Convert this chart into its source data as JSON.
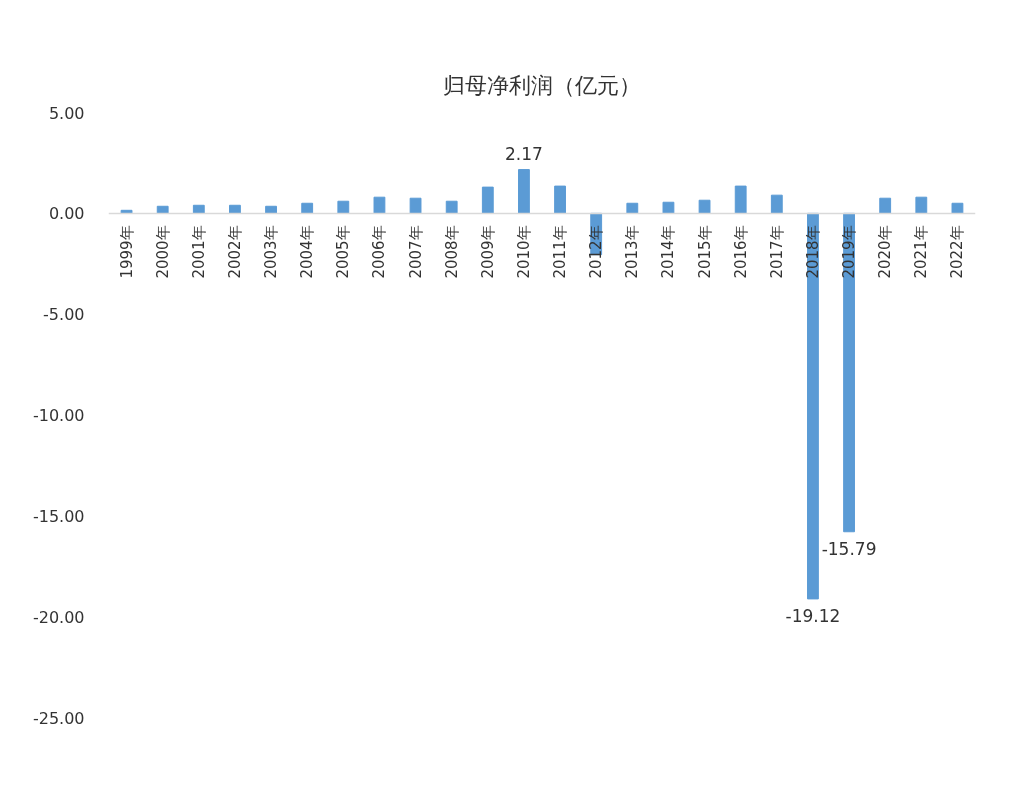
{
  "chart_data": {
    "type": "bar",
    "title": "归母净利润（亿元）",
    "categories": [
      "1999年",
      "2000年",
      "2001年",
      "2002年",
      "2003年",
      "2004年",
      "2005年",
      "2006年",
      "2007年",
      "2008年",
      "2009年",
      "2010年",
      "2011年",
      "2012年",
      "2013年",
      "2014年",
      "2015年",
      "2016年",
      "2017年",
      "2018年",
      "2019年",
      "2020年",
      "2021年",
      "2022年"
    ],
    "values": [
      0.15,
      0.35,
      0.4,
      0.4,
      0.35,
      0.5,
      0.6,
      0.8,
      0.75,
      0.6,
      1.3,
      2.17,
      1.35,
      -2.05,
      0.5,
      0.55,
      0.65,
      1.35,
      0.9,
      -19.12,
      -15.79,
      0.75,
      0.8,
      0.5
    ],
    "value_labels": [
      null,
      null,
      null,
      null,
      null,
      null,
      null,
      null,
      null,
      null,
      null,
      "2.17",
      null,
      null,
      null,
      null,
      null,
      null,
      null,
      "-19.12",
      "-15.79",
      null,
      null,
      null
    ],
    "color": "#5b9bd5",
    "ylim": [
      -25,
      5
    ],
    "yticks": [
      {
        "value": 5,
        "label": "5.00"
      },
      {
        "value": 0,
        "label": "0.00"
      },
      {
        "value": -5,
        "label": "-5.00"
      },
      {
        "value": -10,
        "label": "-10.00"
      },
      {
        "value": -15,
        "label": "-15.00"
      },
      {
        "value": -20,
        "label": "-20.00"
      },
      {
        "value": -25,
        "label": "-25.00"
      }
    ]
  }
}
